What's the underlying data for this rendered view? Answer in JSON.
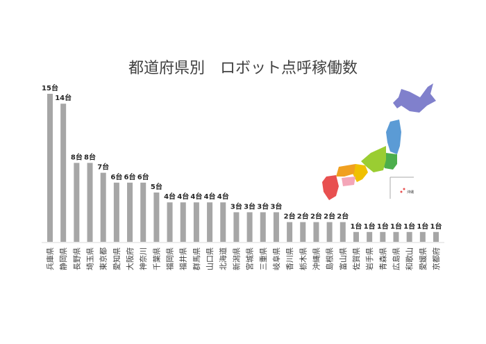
{
  "chart_data": {
    "type": "bar",
    "title": "都道府県別　ロボット点呼稼働数",
    "categories": [
      "兵庫県",
      "静岡県",
      "長野県",
      "埼玉県",
      "東京都",
      "愛知県",
      "大阪府",
      "神奈川",
      "千葉県",
      "福岡県",
      "福井県",
      "群馬県",
      "山口県",
      "北海道",
      "新潟県",
      "宮城県",
      "三重県",
      "岐阜県",
      "香川県",
      "栃木県",
      "沖縄県",
      "島根県",
      "富山県",
      "佐賀県",
      "岩手県",
      "青森県",
      "広島県",
      "和歌山",
      "愛媛県",
      "京都府"
    ],
    "values": [
      15,
      14,
      8,
      8,
      7,
      6,
      6,
      6,
      5,
      4,
      4,
      4,
      4,
      4,
      3,
      3,
      3,
      3,
      2,
      2,
      2,
      2,
      2,
      1,
      1,
      1,
      1,
      1,
      1,
      1
    ],
    "data_label_suffix": "台",
    "ylim": [
      0,
      15
    ],
    "grid": false,
    "bar_color": "#a6a6a6",
    "xlabel": "",
    "ylabel": ""
  },
  "map": {
    "colors": {
      "hokkaido": "#8080cc",
      "tohoku": "#5b9bd5",
      "kanto": "#4cae4c",
      "chubu": "#9acd32",
      "kinki": "#f0c000",
      "chugoku": "#f0a020",
      "shikoku": "#f4a6b8",
      "kyushu": "#e85050"
    },
    "okinawa_label": "沖縄"
  }
}
